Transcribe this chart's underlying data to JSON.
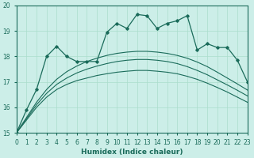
{
  "xlabel": "Humidex (Indice chaleur)",
  "bg_color": "#cceee8",
  "grid_color": "#aaddcc",
  "line_color": "#1a6b5a",
  "xlim": [
    0,
    23
  ],
  "ylim": [
    15,
    20
  ],
  "x": [
    0,
    1,
    2,
    3,
    4,
    5,
    6,
    7,
    8,
    9,
    10,
    11,
    12,
    13,
    14,
    15,
    16,
    17,
    18,
    19,
    20,
    21,
    22,
    23
  ],
  "spiky_y": [
    15.0,
    15.9,
    16.7,
    18.0,
    18.4,
    18.0,
    17.8,
    17.8,
    17.8,
    18.95,
    19.3,
    19.1,
    19.65,
    19.6,
    19.1,
    19.3,
    19.4,
    19.6,
    18.25,
    18.5,
    18.35,
    18.35,
    17.85,
    17.0
  ],
  "smooth1_y": [
    15.0,
    15.5,
    16.0,
    16.4,
    16.7,
    16.9,
    17.05,
    17.15,
    17.25,
    17.32,
    17.38,
    17.42,
    17.45,
    17.45,
    17.42,
    17.38,
    17.32,
    17.22,
    17.1,
    16.95,
    16.78,
    16.6,
    16.4,
    16.2
  ],
  "smooth2_y": [
    15.0,
    15.55,
    16.1,
    16.55,
    16.9,
    17.15,
    17.35,
    17.5,
    17.62,
    17.72,
    17.8,
    17.85,
    17.88,
    17.88,
    17.85,
    17.8,
    17.72,
    17.6,
    17.45,
    17.28,
    17.08,
    16.88,
    16.67,
    16.45
  ],
  "smooth3_y": [
    15.0,
    15.6,
    16.2,
    16.7,
    17.1,
    17.4,
    17.62,
    17.8,
    17.93,
    18.04,
    18.12,
    18.17,
    18.2,
    18.2,
    18.17,
    18.12,
    18.04,
    17.93,
    17.78,
    17.6,
    17.38,
    17.15,
    16.92,
    16.68
  ]
}
